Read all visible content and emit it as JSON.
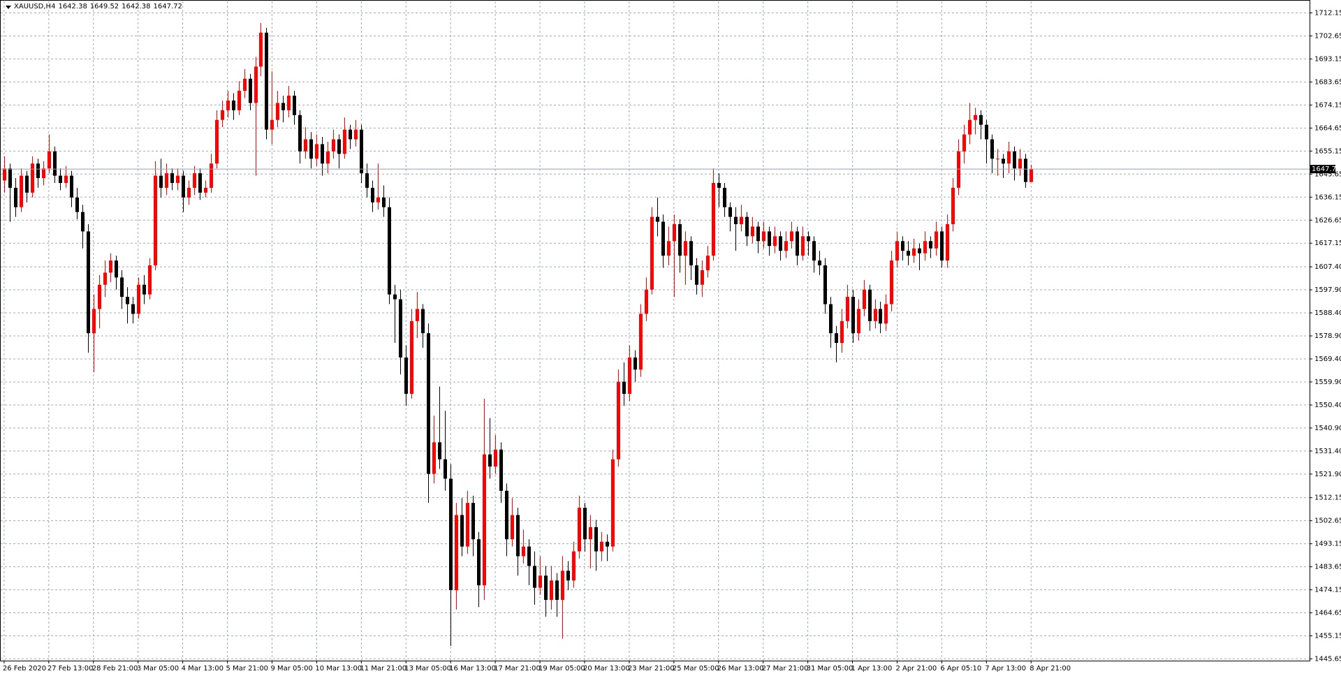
{
  "chart_data": {
    "type": "candlestick",
    "title": "XAUUSD,H4",
    "up_color": "#ff0000",
    "down_color": "#000000",
    "grid": true,
    "grid_color": "#a0a8b8",
    "xlim": [
      -0.74,
      233.9
    ],
    "ylim": [
      1444.93,
      1716.9
    ],
    "yticks": [
      1712.15,
      1702.65,
      1693.15,
      1683.65,
      1674.15,
      1664.65,
      1655.15,
      1645.65,
      1636.15,
      1626.65,
      1617.15,
      {
        "value": 1607.4,
        "label": "1607.40"
      },
      {
        "value": 1597.9,
        "label": "1597.90"
      },
      {
        "value": 1588.4,
        "label": "1588.40"
      },
      {
        "value": 1578.9,
        "label": "1578.90"
      },
      {
        "value": 1569.4,
        "label": "1569.40"
      },
      {
        "value": 1559.9,
        "label": "1559.90"
      },
      {
        "value": 1550.4,
        "label": "1550.40"
      },
      {
        "value": 1540.9,
        "label": "1540.90"
      },
      {
        "value": 1531.4,
        "label": "1531.40"
      },
      {
        "value": 1521.9,
        "label": "1521.90"
      },
      1512.15,
      1502.65,
      1493.15,
      1483.65,
      1474.15,
      1464.65,
      1455.15,
      1445.65
    ],
    "xticks": [
      {
        "value": 0,
        "label": "26 Feb 2020"
      },
      {
        "value": 8,
        "label": "27 Feb 13:00"
      },
      {
        "value": 16,
        "label": "28 Feb 21:00"
      },
      {
        "value": 24,
        "label": "3 Mar 05:00"
      },
      {
        "value": 32,
        "label": "4 Mar 13:00"
      },
      {
        "value": 40,
        "label": "5 Mar 21:00"
      },
      {
        "value": 48,
        "label": "9 Mar 05:00"
      },
      {
        "value": 56,
        "label": "10 Mar 13:00"
      },
      {
        "value": 64,
        "label": "11 Mar 21:00"
      },
      {
        "value": 72,
        "label": "13 Mar 05:00"
      },
      {
        "value": 80,
        "label": "16 Mar 13:00"
      },
      {
        "value": 88,
        "label": "17 Mar 21:00"
      },
      {
        "value": 96,
        "label": "19 Mar 05:00"
      },
      {
        "value": 104,
        "label": "20 Mar 13:00"
      },
      {
        "value": 112,
        "label": "23 Mar 21:00"
      },
      {
        "value": 120,
        "label": "25 Mar 05:00"
      },
      {
        "value": 128,
        "label": "26 Mar 13:00"
      },
      {
        "value": 136,
        "label": "27 Mar 21:00"
      },
      {
        "value": 144,
        "label": "31 Mar 05:00"
      },
      {
        "value": 152,
        "label": "1 Apr 13:00"
      },
      {
        "value": 160,
        "label": "2 Apr 21:00"
      },
      {
        "value": 168,
        "label": "6 Apr 05:10"
      },
      {
        "value": 176,
        "label": "7 Apr 13:00"
      },
      {
        "value": 184,
        "label": "8 Apr 21:00"
      }
    ],
    "values": [
      [
        1643,
        1653,
        1638,
        1648
      ],
      [
        1648,
        1650,
        1626,
        1640
      ],
      [
        1640,
        1644,
        1628,
        1632
      ],
      [
        1632,
        1648,
        1630,
        1645
      ],
      [
        1645,
        1647,
        1634,
        1638
      ],
      [
        1638,
        1653,
        1636,
        1650
      ],
      [
        1650,
        1652,
        1640,
        1644
      ],
      [
        1644,
        1651,
        1641,
        1648
      ],
      [
        1648,
        1662,
        1646,
        1655
      ],
      [
        1655,
        1657,
        1642,
        1645
      ],
      [
        1645,
        1648,
        1639,
        1642
      ],
      [
        1642,
        1649,
        1640,
        1645
      ],
      [
        1645,
        1647,
        1632,
        1636
      ],
      [
        1636,
        1640,
        1627,
        1630
      ],
      [
        1630,
        1633,
        1615,
        1622
      ],
      [
        1622,
        1625,
        1572,
        1580
      ],
      [
        1580,
        1596,
        1564,
        1590
      ],
      [
        1590,
        1604,
        1582,
        1600
      ],
      [
        1600,
        1610,
        1595,
        1605
      ],
      [
        1605,
        1613,
        1601,
        1610
      ],
      [
        1610,
        1612,
        1598,
        1603
      ],
      [
        1603,
        1606,
        1590,
        1595
      ],
      [
        1595,
        1599,
        1584,
        1592
      ],
      [
        1592,
        1595,
        1584,
        1588
      ],
      [
        1588,
        1603,
        1586,
        1600
      ],
      [
        1600,
        1604,
        1592,
        1596
      ],
      [
        1596,
        1611,
        1594,
        1608
      ],
      [
        1608,
        1651,
        1606,
        1645
      ],
      [
        1645,
        1652,
        1636,
        1640
      ],
      [
        1640,
        1650,
        1637,
        1646
      ],
      [
        1646,
        1648,
        1639,
        1642
      ],
      [
        1642,
        1648,
        1639,
        1645
      ],
      [
        1645,
        1647,
        1630,
        1636
      ],
      [
        1636,
        1643,
        1633,
        1640
      ],
      [
        1640,
        1649,
        1637,
        1646
      ],
      [
        1646,
        1648,
        1635,
        1638
      ],
      [
        1638,
        1643,
        1636,
        1640
      ],
      [
        1640,
        1654,
        1638,
        1650
      ],
      [
        1650,
        1672,
        1648,
        1668
      ],
      [
        1668,
        1676,
        1665,
        1672
      ],
      [
        1672,
        1680,
        1669,
        1676
      ],
      [
        1676,
        1679,
        1668,
        1672
      ],
      [
        1672,
        1684,
        1670,
        1680
      ],
      [
        1680,
        1689,
        1677,
        1685
      ],
      [
        1685,
        1687,
        1672,
        1675
      ],
      [
        1675,
        1694,
        1645,
        1690
      ],
      [
        1690,
        1708,
        1686,
        1704
      ],
      [
        1704,
        1706,
        1660,
        1664
      ],
      [
        1664,
        1688,
        1658,
        1668
      ],
      [
        1668,
        1680,
        1665,
        1675
      ],
      [
        1675,
        1678,
        1667,
        1672
      ],
      [
        1672,
        1682,
        1669,
        1678
      ],
      [
        1678,
        1680,
        1666,
        1670
      ],
      [
        1670,
        1672,
        1650,
        1655
      ],
      [
        1655,
        1665,
        1652,
        1660
      ],
      [
        1660,
        1663,
        1648,
        1652
      ],
      [
        1652,
        1662,
        1649,
        1658
      ],
      [
        1658,
        1661,
        1645,
        1650
      ],
      [
        1650,
        1659,
        1646,
        1655
      ],
      [
        1655,
        1664,
        1652,
        1660
      ],
      [
        1660,
        1662,
        1648,
        1654
      ],
      [
        1654,
        1669,
        1652,
        1664
      ],
      [
        1664,
        1666,
        1656,
        1660
      ],
      [
        1660,
        1668,
        1657,
        1664
      ],
      [
        1664,
        1666,
        1642,
        1646
      ],
      [
        1646,
        1650,
        1636,
        1640
      ],
      [
        1640,
        1643,
        1630,
        1634
      ],
      [
        1634,
        1650,
        1631,
        1636
      ],
      [
        1636,
        1641,
        1628,
        1632
      ],
      [
        1632,
        1636,
        1592,
        1596
      ],
      [
        1596,
        1600,
        1576,
        1594
      ],
      [
        1594,
        1598,
        1563,
        1570
      ],
      [
        1570,
        1575,
        1550,
        1555
      ],
      [
        1555,
        1590,
        1553,
        1585
      ],
      [
        1585,
        1597,
        1578,
        1590
      ],
      [
        1590,
        1592,
        1574,
        1580
      ],
      [
        1580,
        1584,
        1510,
        1522
      ],
      [
        1522,
        1546,
        1518,
        1535
      ],
      [
        1535,
        1558,
        1524,
        1528
      ],
      [
        1528,
        1548,
        1515,
        1520
      ],
      [
        1520,
        1526,
        1451,
        1474
      ],
      [
        1474,
        1510,
        1466,
        1505
      ],
      [
        1505,
        1512,
        1488,
        1492
      ],
      [
        1492,
        1515,
        1489,
        1510
      ],
      [
        1510,
        1513,
        1488,
        1495
      ],
      [
        1495,
        1498,
        1467,
        1476
      ],
      [
        1476,
        1553,
        1470,
        1530
      ],
      [
        1530,
        1545,
        1520,
        1525
      ],
      [
        1525,
        1538,
        1522,
        1532
      ],
      [
        1532,
        1535,
        1510,
        1515
      ],
      [
        1515,
        1518,
        1488,
        1495
      ],
      [
        1495,
        1512,
        1492,
        1505
      ],
      [
        1505,
        1508,
        1480,
        1488
      ],
      [
        1488,
        1499,
        1485,
        1492
      ],
      [
        1492,
        1495,
        1476,
        1484
      ],
      [
        1484,
        1490,
        1468,
        1475
      ],
      [
        1475,
        1488,
        1472,
        1480
      ],
      [
        1480,
        1484,
        1463,
        1470
      ],
      [
        1470,
        1484,
        1466,
        1478
      ],
      [
        1478,
        1481,
        1463,
        1470
      ],
      [
        1470,
        1488,
        1454,
        1482
      ],
      [
        1482,
        1486,
        1474,
        1478
      ],
      [
        1478,
        1494,
        1475,
        1490
      ],
      [
        1490,
        1513,
        1487,
        1508
      ],
      [
        1508,
        1510,
        1490,
        1495
      ],
      [
        1495,
        1505,
        1483,
        1500
      ],
      [
        1500,
        1503,
        1482,
        1490
      ],
      [
        1490,
        1498,
        1486,
        1494
      ],
      [
        1494,
        1497,
        1486,
        1492
      ],
      [
        1492,
        1532,
        1490,
        1528
      ],
      [
        1528,
        1565,
        1525,
        1560
      ],
      [
        1560,
        1568,
        1550,
        1555
      ],
      [
        1555,
        1575,
        1552,
        1570
      ],
      [
        1570,
        1573,
        1560,
        1565
      ],
      [
        1565,
        1592,
        1562,
        1588
      ],
      [
        1588,
        1603,
        1585,
        1598
      ],
      [
        1598,
        1632,
        1596,
        1628
      ],
      [
        1628,
        1636,
        1620,
        1626
      ],
      [
        1626,
        1629,
        1607,
        1612
      ],
      [
        1612,
        1624,
        1608,
        1618
      ],
      [
        1618,
        1629,
        1595,
        1625
      ],
      [
        1625,
        1627,
        1605,
        1612
      ],
      [
        1612,
        1622,
        1600,
        1618
      ],
      [
        1618,
        1620,
        1602,
        1608
      ],
      [
        1608,
        1611,
        1596,
        1600
      ],
      [
        1600,
        1610,
        1595,
        1606
      ],
      [
        1606,
        1616,
        1603,
        1612
      ],
      [
        1612,
        1648,
        1610,
        1642
      ],
      [
        1642,
        1646,
        1632,
        1640
      ],
      [
        1640,
        1642,
        1628,
        1632
      ],
      [
        1632,
        1634,
        1622,
        1628
      ],
      [
        1628,
        1632,
        1614,
        1625
      ],
      [
        1625,
        1633,
        1622,
        1628
      ],
      [
        1628,
        1630,
        1616,
        1620
      ],
      [
        1620,
        1628,
        1617,
        1624
      ],
      [
        1624,
        1626,
        1613,
        1618
      ],
      [
        1618,
        1626,
        1615,
        1622
      ],
      [
        1622,
        1624,
        1612,
        1616
      ],
      [
        1616,
        1624,
        1613,
        1620
      ],
      [
        1620,
        1622,
        1610,
        1614
      ],
      [
        1614,
        1622,
        1611,
        1618
      ],
      [
        1618,
        1626,
        1615,
        1622
      ],
      [
        1622,
        1624,
        1608,
        1612
      ],
      [
        1612,
        1624,
        1610,
        1620
      ],
      [
        1620,
        1622,
        1612,
        1618
      ],
      [
        1618,
        1620,
        1605,
        1610
      ],
      [
        1610,
        1614,
        1604,
        1608
      ],
      [
        1608,
        1611,
        1588,
        1592
      ],
      [
        1592,
        1595,
        1574,
        1580
      ],
      [
        1580,
        1583,
        1568,
        1576
      ],
      [
        1576,
        1590,
        1572,
        1585
      ],
      [
        1585,
        1600,
        1582,
        1595
      ],
      [
        1595,
        1598,
        1576,
        1580
      ],
      [
        1580,
        1594,
        1577,
        1590
      ],
      [
        1590,
        1602,
        1587,
        1598
      ],
      [
        1598,
        1600,
        1581,
        1585
      ],
      [
        1585,
        1594,
        1582,
        1590
      ],
      [
        1590,
        1593,
        1580,
        1584
      ],
      [
        1584,
        1596,
        1581,
        1592
      ],
      [
        1592,
        1614,
        1589,
        1610
      ],
      [
        1610,
        1622,
        1607,
        1618
      ],
      [
        1618,
        1620,
        1610,
        1614
      ],
      [
        1614,
        1618,
        1608,
        1612
      ],
      [
        1612,
        1619,
        1609,
        1615
      ],
      [
        1615,
        1617,
        1606,
        1613
      ],
      [
        1613,
        1622,
        1610,
        1618
      ],
      [
        1618,
        1620,
        1611,
        1615
      ],
      [
        1615,
        1626,
        1612,
        1622
      ],
      [
        1622,
        1624,
        1607,
        1610
      ],
      [
        1610,
        1629,
        1607,
        1625
      ],
      [
        1625,
        1644,
        1622,
        1640
      ],
      [
        1640,
        1660,
        1637,
        1655
      ],
      [
        1655,
        1666,
        1650,
        1662
      ],
      [
        1662,
        1675,
        1658,
        1668
      ],
      [
        1668,
        1673,
        1662,
        1670
      ],
      [
        1670,
        1672,
        1660,
        1666
      ],
      [
        1666,
        1668,
        1650,
        1660
      ],
      [
        1660,
        1662,
        1646,
        1652
      ],
      [
        1652,
        1656,
        1645,
        1652
      ],
      [
        1652,
        1654,
        1644,
        1650
      ],
      [
        1650,
        1659,
        1646,
        1655
      ],
      [
        1655,
        1657,
        1643,
        1648
      ],
      [
        1648,
        1656,
        1645,
        1652
      ],
      [
        1652,
        1654,
        1640,
        1642.38
      ],
      [
        1642.38,
        1649.52,
        1642.38,
        1647.72
      ]
    ]
  }
}
